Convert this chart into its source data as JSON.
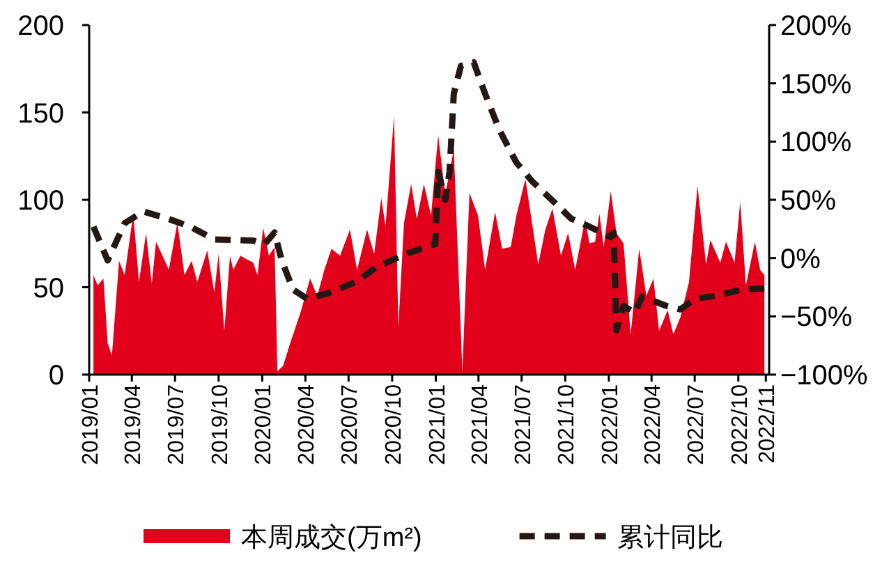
{
  "chart_data": {
    "type": "area",
    "xlim": [
      "2019-01-01",
      "2022-12-05"
    ],
    "ylim": [
      0,
      200
    ],
    "yticks": [
      0,
      50,
      100,
      150,
      200
    ],
    "y2lim": [
      -100,
      200
    ],
    "y2ticks": [
      {
        "value": -100,
        "label": "−100%"
      },
      {
        "value": -50,
        "label": "−50%"
      },
      {
        "value": 0,
        "label": "0%"
      },
      {
        "value": 50,
        "label": "50%"
      },
      {
        "value": 100,
        "label": "100%"
      },
      {
        "value": 150,
        "label": "150%"
      },
      {
        "value": 200,
        "label": "200%"
      }
    ],
    "xticks": [
      {
        "value": "2019-01-01",
        "label": "2019/01"
      },
      {
        "value": "2019-04-01",
        "label": "2019/04"
      },
      {
        "value": "2019-07-01",
        "label": "2019/07"
      },
      {
        "value": "2019-10-01",
        "label": "2019/10"
      },
      {
        "value": "2020-01-01",
        "label": "2020/01"
      },
      {
        "value": "2020-04-01",
        "label": "2020/04"
      },
      {
        "value": "2020-07-01",
        "label": "2020/07"
      },
      {
        "value": "2020-10-01",
        "label": "2020/10"
      },
      {
        "value": "2021-01-01",
        "label": "2021/01"
      },
      {
        "value": "2021-04-01",
        "label": "2021/04"
      },
      {
        "value": "2021-07-01",
        "label": "2021/07"
      },
      {
        "value": "2021-10-01",
        "label": "2021/10"
      },
      {
        "value": "2022-01-01",
        "label": "2022/01"
      },
      {
        "value": "2022-04-01",
        "label": "2022/04"
      },
      {
        "value": "2022-07-01",
        "label": "2022/07"
      },
      {
        "value": "2022-10-01",
        "label": "2022/10"
      },
      {
        "value": "2022-11-28",
        "label": "2022/11"
      }
    ],
    "legend": "bottom",
    "series": [
      {
        "name": "本周成交(万m²)",
        "type": "area",
        "color": "#e2001a",
        "x": [
          "2019-01-10",
          "2019-01-19",
          "2019-01-31",
          "2019-02-09",
          "2019-02-18",
          "2019-03-05",
          "2019-03-17",
          "2019-04-04",
          "2019-04-16",
          "2019-05-01",
          "2019-05-13",
          "2019-05-22",
          "2019-06-03",
          "2019-06-18",
          "2019-07-06",
          "2019-07-21",
          "2019-08-05",
          "2019-08-17",
          "2019-09-07",
          "2019-09-22",
          "2019-10-01",
          "2019-10-13",
          "2019-10-25",
          "2019-11-01",
          "2019-11-16",
          "2019-12-13",
          "2019-12-22",
          "2020-01-03",
          "2020-01-15",
          "2020-01-27",
          "2020-02-02",
          "2020-02-14",
          "2020-02-29",
          "2020-03-21",
          "2020-04-11",
          "2020-04-26",
          "2020-05-11",
          "2020-05-26",
          "2020-06-13",
          "2020-07-04",
          "2020-07-19",
          "2020-08-09",
          "2020-08-24",
          "2020-09-08",
          "2020-09-17",
          "2020-10-05",
          "2020-10-14",
          "2020-10-26",
          "2020-11-10",
          "2020-11-22",
          "2020-12-07",
          "2020-12-22",
          "2021-01-06",
          "2021-01-21",
          "2021-02-08",
          "2021-02-26",
          "2021-03-13",
          "2021-03-31",
          "2021-04-15",
          "2021-05-06",
          "2021-05-21",
          "2021-06-08",
          "2021-06-20",
          "2021-07-09",
          "2021-08-05",
          "2021-08-20",
          "2021-09-04",
          "2021-09-22",
          "2021-10-07",
          "2021-10-22",
          "2021-11-12",
          "2021-11-21",
          "2021-12-03",
          "2021-12-12",
          "2021-12-21",
          "2022-01-05",
          "2022-01-17",
          "2022-02-01",
          "2022-02-16",
          "2022-03-06",
          "2022-03-21",
          "2022-04-05",
          "2022-04-17",
          "2022-05-05",
          "2022-05-17",
          "2022-06-01",
          "2022-06-19",
          "2022-07-07",
          "2022-07-25",
          "2022-08-03",
          "2022-08-24",
          "2022-09-05",
          "2022-09-23",
          "2022-10-05",
          "2022-10-17",
          "2022-11-05",
          "2022-11-16",
          "2022-11-25"
        ],
        "values": [
          57,
          51,
          55,
          18,
          11,
          65,
          57,
          92,
          53,
          81,
          52,
          76,
          69,
          60,
          87,
          57,
          65,
          53,
          71,
          47,
          69,
          25,
          68,
          60,
          68,
          64,
          57,
          84,
          68,
          73,
          2,
          5,
          18,
          35,
          55,
          45,
          60,
          72,
          68,
          83,
          60,
          83,
          69,
          101,
          85,
          148,
          27,
          87,
          109,
          89,
          109,
          91,
          137,
          103,
          129,
          2,
          104,
          91,
          60,
          93,
          72,
          73,
          91,
          112,
          63,
          83,
          95,
          68,
          81,
          60,
          89,
          75,
          76,
          92,
          73,
          105,
          81,
          75,
          23,
          72,
          45,
          55,
          25,
          37,
          23,
          33,
          53,
          108,
          63,
          77,
          64,
          76,
          64,
          99,
          51,
          76,
          60,
          57
        ]
      },
      {
        "name": "累计同比",
        "type": "line",
        "axis": "y2",
        "color": "#231815",
        "line_style": "dashed",
        "x": [
          "2019-01-10",
          "2019-02-09",
          "2019-03-17",
          "2019-04-25",
          "2019-06-15",
          "2019-08-02",
          "2019-09-22",
          "2019-12-13",
          "2020-01-06",
          "2020-01-27",
          "2020-02-11",
          "2020-03-06",
          "2020-04-05",
          "2020-05-20",
          "2020-07-19",
          "2020-08-27",
          "2020-11-01",
          "2020-12-31",
          "2021-01-06",
          "2021-01-21",
          "2021-01-30",
          "2021-02-08",
          "2021-02-23",
          "2021-03-22",
          "2021-04-15",
          "2021-05-15",
          "2021-06-20",
          "2021-07-23",
          "2021-09-13",
          "2021-10-13",
          "2021-11-21",
          "2022-01-05",
          "2022-01-11",
          "2022-01-17",
          "2022-02-01",
          "2022-02-25",
          "2022-03-12",
          "2022-05-02",
          "2022-06-01",
          "2022-07-01",
          "2022-08-18",
          "2022-10-08",
          "2022-11-25"
        ],
        "values": [
          27,
          -2,
          30,
          40,
          34,
          27,
          16,
          15,
          12,
          22,
          -2,
          -27,
          -35,
          -30,
          -20,
          -8,
          4,
          12,
          74,
          50,
          74,
          141,
          165,
          168,
          141,
          110,
          82,
          66,
          46,
          34,
          27,
          18,
          22,
          -62,
          -41,
          -47,
          -33,
          -41,
          -44,
          -35,
          -32,
          -27,
          -26
        ]
      }
    ]
  }
}
